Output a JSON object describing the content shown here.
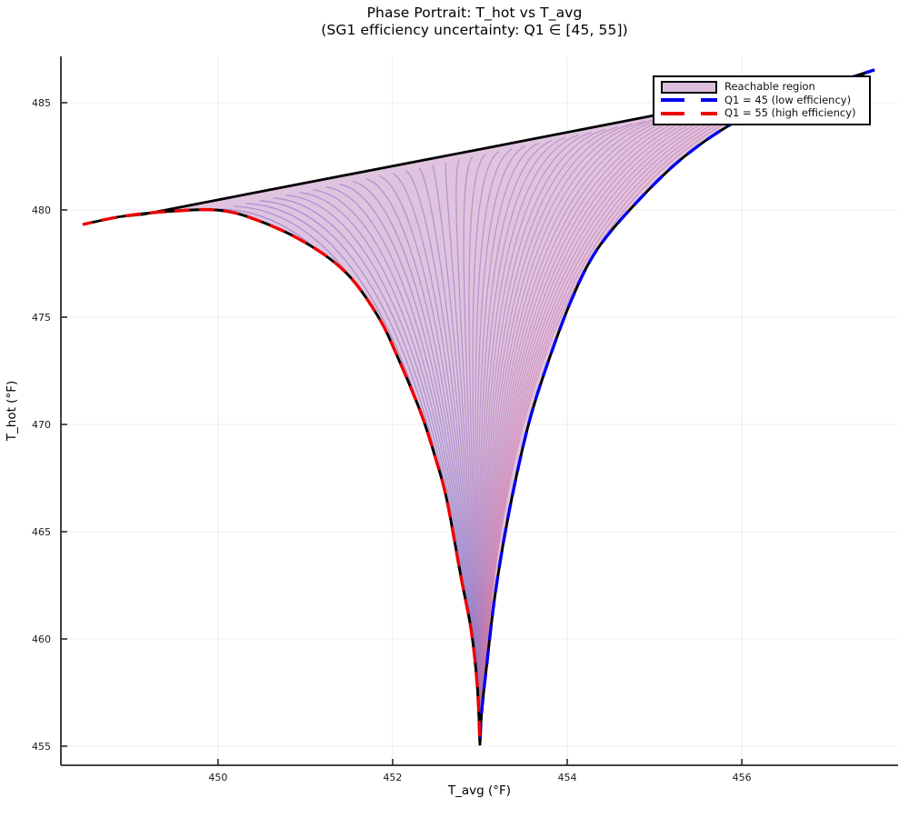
{
  "title": {
    "line1": "Phase Portrait: T_hot vs T_avg",
    "line2": "(SG1 efficiency uncertainty: Q1 ∈ [45, 55])"
  },
  "axes": {
    "xlabel": "T_avg (°F)",
    "ylabel": "T_hot (°F)",
    "tick_color": "#1a1a1a",
    "spine_color": "#2a2a2a",
    "grid_color": "rgba(0,0,0,0.07)"
  },
  "legend": {
    "items": [
      {
        "label": "Reachable region",
        "type": "patch",
        "fill": "#ddbfdd",
        "border": "#000000"
      },
      {
        "label": "Q1 = 45 (low efficiency)",
        "type": "dash",
        "color": "#0000ee"
      },
      {
        "label": "Q1 = 55 (high efficiency)",
        "type": "dash",
        "color": "#ee0000"
      }
    ]
  },
  "chart_data": {
    "type": "line",
    "title": "Phase Portrait: T_hot vs T_avg (SG1 efficiency uncertainty: Q1 ∈ [45, 55])",
    "xlabel": "T_avg (°F)",
    "ylabel": "T_hot (°F)",
    "xlim": [
      448.2,
      457.79
    ],
    "ylim": [
      454.11,
      487.16
    ],
    "xticks": [
      450,
      452,
      454,
      456
    ],
    "yticks": [
      455,
      460,
      465,
      470,
      475,
      480,
      485
    ],
    "grid": true,
    "legend_position": "top-right",
    "region": {
      "label": "Reachable region",
      "fill": "#e0c4df",
      "border_color": "#000000",
      "n_trajectories": 48,
      "trajectory_gradient": [
        "#6e6ecd",
        "#cd73a5"
      ],
      "trajectory_opacity": 0.55,
      "converges_to": [
        453.0,
        455.0
      ]
    },
    "series": [
      {
        "name": "Q1 = 55 (high efficiency)",
        "color": "#ee0000",
        "style": "dashed",
        "underlay": "#000000",
        "points": [
          [
            448.45,
            479.32
          ],
          [
            448.9,
            479.7
          ],
          [
            449.4,
            479.92
          ],
          [
            450.0,
            479.99
          ],
          [
            450.45,
            479.52
          ],
          [
            451.0,
            478.48
          ],
          [
            451.47,
            477.06
          ],
          [
            451.83,
            475.06
          ],
          [
            452.06,
            473.12
          ],
          [
            452.32,
            470.57
          ],
          [
            452.49,
            468.45
          ],
          [
            452.62,
            466.5
          ],
          [
            452.78,
            462.95
          ],
          [
            452.9,
            460.4
          ],
          [
            452.97,
            457.8
          ],
          [
            453.0,
            455.04
          ]
        ]
      },
      {
        "name": "Q1 = 45 (low efficiency)",
        "color": "#0000ee",
        "style": "dashed",
        "underlay": "#000000",
        "points": [
          [
            457.52,
            486.53
          ],
          [
            457.18,
            486.08
          ],
          [
            456.6,
            485.25
          ],
          [
            455.95,
            484.16
          ],
          [
            455.33,
            482.45
          ],
          [
            454.8,
            480.37
          ],
          [
            454.35,
            478.2
          ],
          [
            454.06,
            475.92
          ],
          [
            453.78,
            472.9
          ],
          [
            453.55,
            469.9
          ],
          [
            453.34,
            466.05
          ],
          [
            453.18,
            462.25
          ],
          [
            453.08,
            458.87
          ],
          [
            453.02,
            456.6
          ],
          [
            453.0,
            455.04
          ]
        ]
      },
      {
        "name": "reachable region upper envelope",
        "color": "#000000",
        "style": "solid",
        "points": [
          [
            449.15,
            479.8
          ],
          [
            451.0,
            481.26
          ],
          [
            453.0,
            482.83
          ],
          [
            455.0,
            484.41
          ],
          [
            456.5,
            485.59
          ],
          [
            457.18,
            486.08
          ],
          [
            457.52,
            486.53
          ]
        ]
      }
    ]
  }
}
